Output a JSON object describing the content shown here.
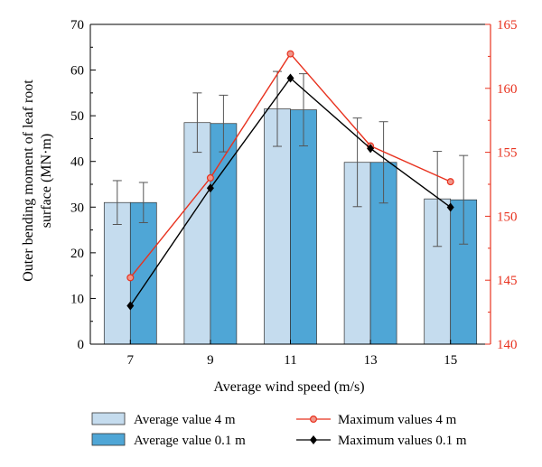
{
  "chart_data": {
    "type": "bar",
    "categories": [
      "7",
      "9",
      "11",
      "13",
      "15"
    ],
    "xlabel": "Average wind speed (m/s)",
    "ylabel_lines": [
      "Outer bending moment of leaf root",
      "surface (MN·m)"
    ],
    "ylim": [
      0,
      70
    ],
    "y_ticks": [
      "0",
      "10",
      "20",
      "30",
      "40",
      "50",
      "60",
      "70"
    ],
    "y2lim": [
      140,
      165
    ],
    "y2_ticks": [
      "140",
      "145",
      "150",
      "155",
      "160",
      "165"
    ],
    "grid": false,
    "legend_position": "bottom",
    "bar_series": [
      {
        "name": "Average value 4 m",
        "values": [
          31,
          48.5,
          51.5,
          39.8,
          31.8
        ],
        "error": [
          4.8,
          6.5,
          8.2,
          9.7,
          10.4
        ],
        "color": "#c5dcee"
      },
      {
        "name": "Average value 0.1 m",
        "values": [
          31,
          48.3,
          51.3,
          39.8,
          31.6
        ],
        "error": [
          4.4,
          6.2,
          7.9,
          8.9,
          9.7
        ],
        "color": "#4fa6d6"
      }
    ],
    "line_series": [
      {
        "name": "Maximum values 4 m",
        "axis": "right",
        "values": [
          145.2,
          153,
          162.7,
          155.5,
          152.7
        ],
        "color": "#e8321f",
        "marker": "circle"
      },
      {
        "name": "Maximum values 0.1 m",
        "axis": "right",
        "values": [
          143,
          152.2,
          160.8,
          155.3,
          150.7
        ],
        "color": "#000000",
        "marker": "diamond"
      }
    ],
    "right_axis_color": "#e8321f"
  }
}
